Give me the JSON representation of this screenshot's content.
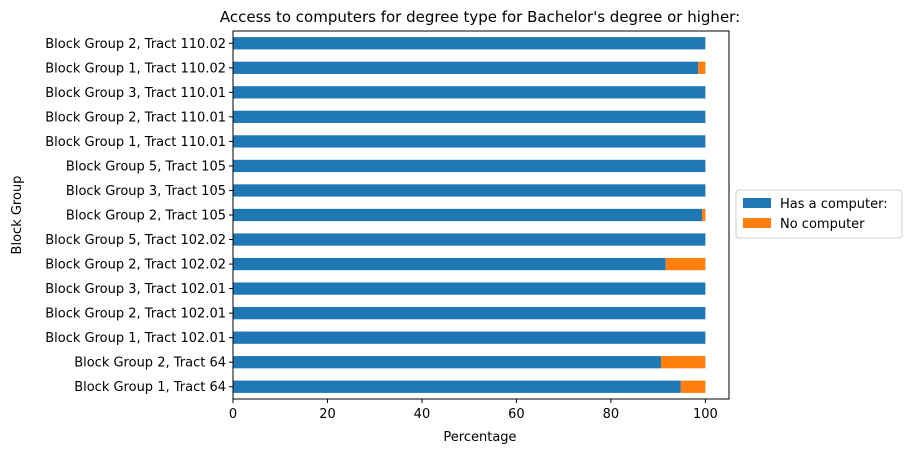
{
  "chart_data": {
    "type": "bar",
    "orientation": "horizontal",
    "stacked": true,
    "title": "Access to computers for degree type for Bachelor's degree or higher:",
    "xlabel": "Percentage",
    "ylabel": "Block Group",
    "xlim": [
      0,
      105
    ],
    "xticks": [
      0,
      20,
      40,
      60,
      80,
      100
    ],
    "grid": false,
    "legend_position": "center-right, outside plot",
    "categories": [
      "Block Group 1, Tract 64",
      "Block Group 2, Tract 64",
      "Block Group 1, Tract 102.01",
      "Block Group 2, Tract 102.01",
      "Block Group 3, Tract 102.01",
      "Block Group 2, Tract 102.02",
      "Block Group 5, Tract 102.02",
      "Block Group 2, Tract 105",
      "Block Group 3, Tract 105",
      "Block Group 5, Tract 105",
      "Block Group 1, Tract 110.01",
      "Block Group 2, Tract 110.01",
      "Block Group 3, Tract 110.01",
      "Block Group 1, Tract 110.02",
      "Block Group 2, Tract 110.02"
    ],
    "series": [
      {
        "name": "Has a computer:",
        "color": "#1f77b4",
        "values": [
          94.8,
          90.6,
          100,
          100,
          100,
          91.6,
          100,
          99.3,
          100,
          100,
          100,
          100,
          100,
          98.5,
          100
        ]
      },
      {
        "name": "No computer",
        "color": "#ff7f0e",
        "values": [
          5.2,
          9.4,
          0,
          0,
          0,
          8.4,
          0,
          0.7,
          0,
          0,
          0,
          0,
          0,
          1.5,
          0
        ]
      }
    ]
  }
}
